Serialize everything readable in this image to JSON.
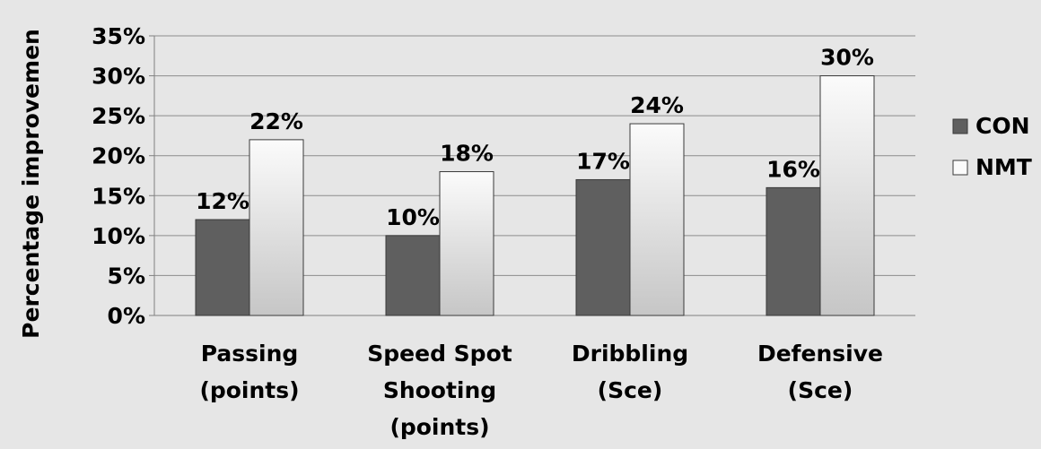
{
  "chart_data": {
    "type": "bar",
    "categories": [
      [
        "Passing",
        "(points)"
      ],
      [
        "Speed Spot",
        "Shooting",
        "(points)"
      ],
      [
        "Dribbling",
        "(Sce)"
      ],
      [
        "Defensive",
        "(Sce)"
      ]
    ],
    "series": [
      {
        "name": "CON",
        "values": [
          12,
          10,
          17,
          16
        ],
        "labels": [
          "12%",
          "10%",
          "17%",
          "16%"
        ]
      },
      {
        "name": "NMT",
        "values": [
          22,
          18,
          24,
          30
        ],
        "labels": [
          "22%",
          "18%",
          "24%",
          "30%"
        ]
      }
    ],
    "ylabel": "Percentage improvemen",
    "ylim": [
      0,
      35
    ],
    "yticks": [
      0,
      5,
      10,
      15,
      20,
      25,
      30,
      35
    ],
    "ytick_labels": [
      "0%",
      "5%",
      "10%",
      "15%",
      "20%",
      "25%",
      "30%",
      "35%"
    ],
    "grid": true,
    "legend": "right",
    "colors": {
      "background": "#e6e6e6",
      "grid": "#8c8c8c",
      "axis": "#808080",
      "CON": "#5f5f5f",
      "NMT_light": "#fbfbfb",
      "NMT_dark": "#c6c6c6",
      "bar_border": "#3a3a3a"
    }
  }
}
